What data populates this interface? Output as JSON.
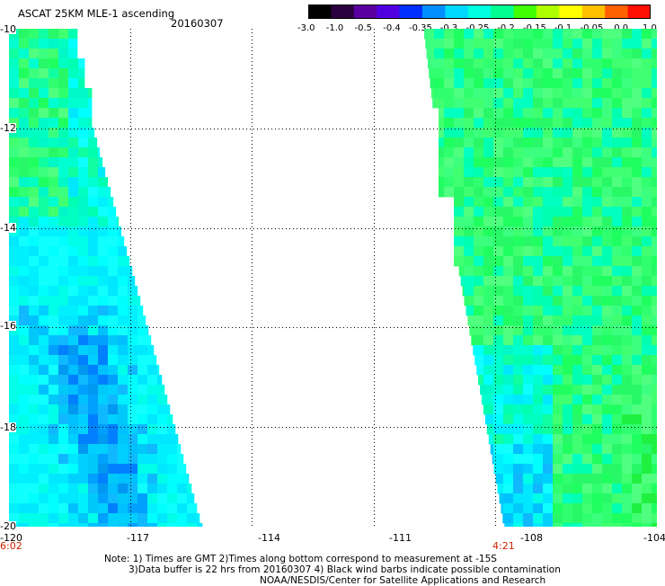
{
  "header": {
    "title": "ASCAT 25KM MLE-1 ascending",
    "date": "20160307"
  },
  "colorbar": {
    "labels": [
      "-3.0",
      "-1.0",
      "-0.5",
      "-0.4",
      "-0.35",
      "-0.3",
      "-0.25",
      "-0.2",
      "-0.15",
      "-0.1",
      "-0.05",
      "0.0",
      "1.0"
    ],
    "colors": [
      "#000000",
      "#2a0040",
      "#5a00a0",
      "#5000e0",
      "#0030ff",
      "#0090ff",
      "#00d8ff",
      "#00ffe0",
      "#00ff90",
      "#40ff00",
      "#b0ff00",
      "#ffff00",
      "#ffc000",
      "#ff6000",
      "#ff1000"
    ]
  },
  "map": {
    "lat_range": [
      -20,
      -10
    ],
    "lon_range": [
      -120,
      -104
    ],
    "y_tick_labels": [
      "-10",
      "-12",
      "-14",
      "-16",
      "-18",
      "-20"
    ],
    "x_tick_labels": [
      "-120",
      "-117",
      "-114",
      "-111",
      "-108",
      "-104"
    ],
    "time_labels": [
      "6:02",
      "4:21"
    ],
    "gridlines": true
  },
  "footer": {
    "line1": "Note: 1) Times are GMT 2)Times along bottom correspond to measurement at -15S",
    "line2": "3)Data buffer is 22 hrs from 20160307 4) Black wind barbs indicate possible contamination",
    "line3": "NOAA/NESDIS/Center for Satellite Applications and Research"
  }
}
